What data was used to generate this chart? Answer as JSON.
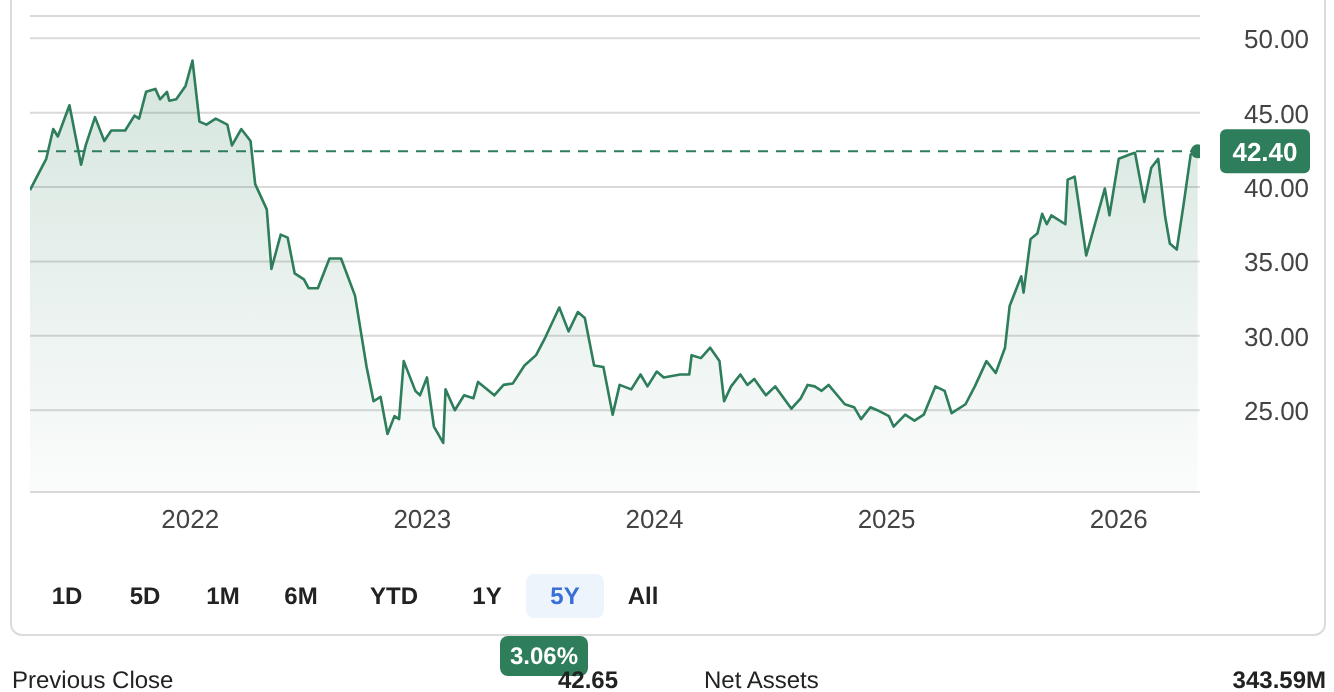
{
  "chart_data": {
    "type": "area",
    "x": [
      2021.31,
      2021.34,
      2021.38,
      2021.41,
      2021.43,
      2021.48,
      2021.53,
      2021.55,
      2021.59,
      2021.63,
      2021.66,
      2021.72,
      2021.76,
      2021.78,
      2021.81,
      2021.85,
      2021.87,
      2021.9,
      2021.91,
      2021.94,
      2021.98,
      2022.01,
      2022.04,
      2022.07,
      2022.11,
      2022.16,
      2022.18,
      2022.22,
      2022.26,
      2022.28,
      2022.33,
      2022.35,
      2022.39,
      2022.42,
      2022.45,
      2022.49,
      2022.51,
      2022.55,
      2022.6,
      2022.65,
      2022.71,
      2022.76,
      2022.79,
      2022.82,
      2022.85,
      2022.88,
      2022.9,
      2022.92,
      2022.97,
      2022.99,
      2023.02,
      2023.05,
      2023.09,
      2023.1,
      2023.14,
      2023.18,
      2023.22,
      2023.24,
      2023.31,
      2023.35,
      2023.39,
      2023.44,
      2023.49,
      2023.53,
      2023.59,
      2023.63,
      2023.67,
      2023.7,
      2023.74,
      2023.78,
      2023.82,
      2023.85,
      2023.9,
      2023.94,
      2023.97,
      2024.01,
      2024.04,
      2024.11,
      2024.15,
      2024.16,
      2024.2,
      2024.24,
      2024.28,
      2024.3,
      2024.33,
      2024.37,
      2024.4,
      2024.43,
      2024.48,
      2024.52,
      2024.59,
      2024.63,
      2024.66,
      2024.69,
      2024.72,
      2024.75,
      2024.82,
      2024.86,
      2024.89,
      2024.93,
      2024.96,
      2025.01,
      2025.03,
      2025.08,
      2025.12,
      2025.16,
      2025.21,
      2025.25,
      2025.28,
      2025.34,
      2025.38,
      2025.43,
      2025.47,
      2025.51,
      2025.53,
      2025.58,
      2025.59,
      2025.62,
      2025.65,
      2025.67,
      2025.69,
      2025.71,
      2025.77,
      2025.78,
      2025.81,
      2025.86,
      2025.94,
      2025.96,
      2026.0,
      2026.05,
      2026.07,
      2026.11,
      2026.14,
      2026.17,
      2026.2,
      2026.22,
      2026.25,
      2026.28,
      2026.31,
      2026.34
    ],
    "series": [
      {
        "color": "#2e7d5b",
        "values": [
          39.8,
          40.7,
          41.9,
          43.9,
          43.4,
          45.5,
          41.5,
          42.8,
          44.7,
          43.1,
          43.8,
          43.8,
          44.8,
          44.6,
          46.4,
          46.6,
          45.9,
          46.4,
          45.8,
          45.9,
          46.8,
          48.5,
          44.4,
          44.2,
          44.6,
          44.2,
          42.8,
          43.9,
          43.1,
          40.2,
          38.5,
          34.5,
          36.8,
          36.6,
          34.2,
          33.8,
          33.2,
          33.2,
          35.2,
          35.2,
          32.7,
          27.9,
          25.6,
          25.9,
          23.4,
          24.6,
          24.4,
          28.3,
          26.3,
          26.0,
          27.2,
          23.9,
          22.8,
          26.4,
          25.0,
          26.0,
          25.8,
          26.9,
          26.0,
          26.7,
          26.8,
          28.0,
          28.7,
          29.9,
          31.9,
          30.3,
          31.6,
          31.2,
          28.0,
          27.9,
          24.7,
          26.7,
          26.4,
          27.4,
          26.6,
          27.6,
          27.2,
          27.4,
          27.4,
          28.7,
          28.5,
          29.2,
          28.3,
          25.6,
          26.6,
          27.4,
          26.7,
          27.1,
          26.0,
          26.6,
          25.1,
          25.8,
          26.7,
          26.6,
          26.3,
          26.7,
          25.4,
          25.2,
          24.4,
          25.2,
          25.0,
          24.6,
          23.9,
          24.7,
          24.3,
          24.7,
          26.6,
          26.3,
          24.8,
          25.4,
          26.6,
          28.3,
          27.5,
          29.2,
          32.0,
          34.0,
          32.9,
          36.5,
          36.9,
          38.2,
          37.5,
          38.1,
          37.5,
          40.5,
          40.7,
          35.4,
          39.9,
          38.1,
          41.9,
          42.2,
          42.3,
          39.0,
          41.3,
          41.9,
          38.0,
          36.2,
          35.8,
          38.9,
          42.2,
          42.4
        ]
      }
    ],
    "xlim": [
      2021.31,
      2026.35
    ],
    "xticks": [
      2022,
      2023,
      2024,
      2025,
      2026
    ],
    "ylim": [
      19.5,
      51.5
    ],
    "yticks": [
      {
        "value": 25,
        "label": "25.00"
      },
      {
        "value": 30,
        "label": "30.00"
      },
      {
        "value": 35,
        "label": "35.00"
      },
      {
        "value": 40,
        "label": "40.00"
      },
      {
        "value": 45,
        "label": "45.00"
      },
      {
        "value": 50,
        "label": "50.00"
      }
    ],
    "grid": "y",
    "ref_lines": [
      {
        "axis": "y",
        "value": 42.4,
        "label": "42.40",
        "color": "#2e7d5b",
        "line_style": "dashed"
      }
    ],
    "annotations": [
      "1D",
      "5D",
      "1M",
      "6M",
      "YTD",
      "1Y",
      "5Y",
      "All",
      "3.06%",
      "Previous Close",
      "42.65",
      "Net Assets",
      "343.59M"
    ]
  }
}
